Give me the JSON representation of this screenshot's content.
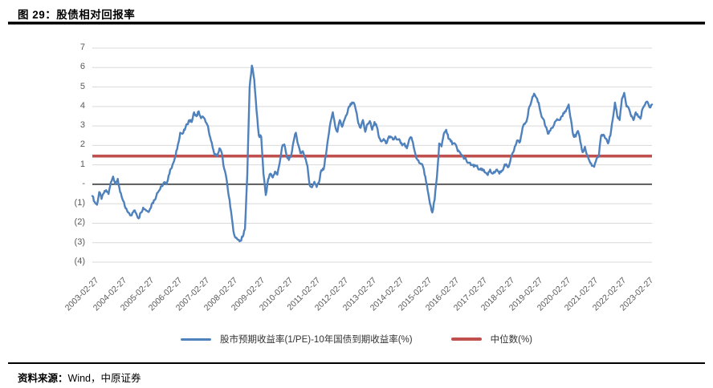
{
  "title": "图 29：股债相对回报率",
  "source_note": {
    "label": "资料来源：",
    "text": "Wind，中原证券"
  },
  "colors": {
    "series_line": "#4f81bd",
    "median_line": "#c0504d",
    "gridline": "#d9d9d9",
    "zero_axis": "#000000",
    "tick_text": "#595959"
  },
  "chart_data": {
    "type": "line",
    "title": "股债相对回报率",
    "xlabel": "",
    "ylabel": "",
    "ylim": [
      -4,
      7
    ],
    "grid": true,
    "legend_position": "bottom",
    "start_month": "2003-02",
    "frequency": "monthly",
    "y_ticks": [
      {
        "label": "7",
        "value": 7
      },
      {
        "label": "6",
        "value": 6
      },
      {
        "label": "5",
        "value": 5
      },
      {
        "label": "4",
        "value": 4
      },
      {
        "label": "3",
        "value": 3
      },
      {
        "label": "2",
        "value": 2
      },
      {
        "label": "1",
        "value": 1
      },
      {
        "label": "-",
        "value": 0
      },
      {
        "label": "(1)",
        "value": -1
      },
      {
        "label": "(2)",
        "value": -2
      },
      {
        "label": "(3)",
        "value": -3
      },
      {
        "label": "(4)",
        "value": -4
      }
    ],
    "x_ticks": [
      {
        "label": "2003-02-27",
        "month_index": 0
      },
      {
        "label": "2004-02-27",
        "month_index": 12
      },
      {
        "label": "2005-02-27",
        "month_index": 24
      },
      {
        "label": "2006-02-27",
        "month_index": 36
      },
      {
        "label": "2007-02-27",
        "month_index": 48
      },
      {
        "label": "2008-02-27",
        "month_index": 60
      },
      {
        "label": "2009-02-27",
        "month_index": 72
      },
      {
        "label": "2010-02-27",
        "month_index": 84
      },
      {
        "label": "2011-02-27",
        "month_index": 96
      },
      {
        "label": "2012-02-27",
        "month_index": 108
      },
      {
        "label": "2013-02-27",
        "month_index": 120
      },
      {
        "label": "2014-02-27",
        "month_index": 132
      },
      {
        "label": "2015-02-27",
        "month_index": 144
      },
      {
        "label": "2016-02-27",
        "month_index": 156
      },
      {
        "label": "2017-02-27",
        "month_index": 168
      },
      {
        "label": "2018-02-27",
        "month_index": 180
      },
      {
        "label": "2019-02-27",
        "month_index": 192
      },
      {
        "label": "2020-02-27",
        "month_index": 204
      },
      {
        "label": "2021-02-27",
        "month_index": 216
      },
      {
        "label": "2022-02-27",
        "month_index": 228
      },
      {
        "label": "2023-02-27",
        "month_index": 240
      }
    ],
    "series": [
      {
        "name": "股市预期收益率(1/PE)-10年国债到期收益率(%)",
        "type": "line",
        "color": "#4f81bd",
        "values": [
          -0.6,
          -0.9,
          -1.05,
          -0.4,
          -0.75,
          -0.45,
          -0.3,
          -0.5,
          0.1,
          0.4,
          0.0,
          0.28,
          -0.4,
          -0.75,
          -1.1,
          -1.35,
          -1.5,
          -1.6,
          -1.35,
          -1.5,
          -1.75,
          -1.45,
          -1.2,
          -1.3,
          -1.4,
          -1.25,
          -0.95,
          -0.8,
          -0.45,
          -0.3,
          -0.1,
          0.1,
          0.0,
          0.45,
          0.8,
          1.1,
          1.45,
          2.05,
          2.65,
          2.6,
          2.8,
          3.1,
          3.3,
          3.2,
          3.7,
          3.5,
          3.75,
          3.4,
          3.45,
          3.2,
          3.0,
          2.4,
          1.9,
          1.5,
          1.45,
          1.85,
          1.6,
          0.8,
          0.3,
          -0.6,
          -1.4,
          -2.4,
          -2.75,
          -2.85,
          -2.9,
          -2.7,
          -2.3,
          0.5,
          5.0,
          6.1,
          5.4,
          3.8,
          2.5,
          2.45,
          0.55,
          -0.55,
          0.25,
          0.55,
          0.35,
          0.65,
          0.5,
          1.1,
          1.9,
          2.05,
          1.5,
          1.25,
          1.5,
          2.2,
          2.65,
          2.05,
          1.6,
          1.7,
          1.35,
          0.95,
          -0.05,
          -0.15,
          0.13,
          -0.14,
          0.1,
          0.72,
          0.76,
          1.5,
          2.4,
          3.2,
          3.7,
          3.0,
          2.7,
          3.3,
          2.96,
          3.3,
          3.57,
          4.0,
          4.1,
          4.2,
          3.8,
          3.15,
          2.9,
          3.3,
          2.7,
          3.1,
          3.25,
          2.8,
          3.2,
          2.96,
          2.4,
          2.2,
          2.33,
          2.1,
          2.4,
          2.45,
          2.3,
          2.45,
          2.3,
          2.26,
          2.0,
          2.1,
          1.85,
          2.3,
          2.4,
          1.9,
          1.37,
          1.23,
          1.05,
          0.9,
          0.4,
          -0.3,
          -1.0,
          -1.45,
          -0.8,
          0.35,
          2.1,
          1.95,
          2.6,
          2.8,
          2.35,
          2.2,
          2.1,
          2.06,
          1.7,
          1.65,
          1.45,
          1.35,
          1.15,
          1.1,
          1.0,
          0.9,
          0.95,
          0.76,
          0.82,
          0.7,
          0.6,
          0.48,
          0.76,
          0.55,
          0.6,
          0.76,
          0.55,
          0.7,
          0.9,
          1.03,
          0.9,
          1.37,
          1.65,
          2.0,
          2.26,
          2.2,
          2.88,
          3.1,
          3.36,
          4.0,
          4.32,
          4.66,
          4.45,
          4.2,
          3.6,
          3.36,
          2.96,
          2.6,
          2.75,
          2.9,
          3.2,
          3.35,
          3.3,
          3.5,
          3.65,
          3.85,
          4.1,
          3.3,
          2.5,
          2.45,
          2.74,
          2.2,
          1.65,
          1.93,
          1.5,
          1.2,
          0.95,
          0.9,
          1.3,
          1.45,
          2.5,
          2.55,
          2.35,
          2.1,
          2.5,
          3.3,
          4.2,
          3.5,
          3.3,
          4.4,
          4.7,
          4.0,
          3.9,
          3.5,
          3.3,
          3.7,
          3.5,
          3.37,
          3.9,
          4.1,
          4.25,
          3.95,
          4.1
        ]
      },
      {
        "name": "中位数(%)",
        "type": "constant-line",
        "color": "#c0504d",
        "value": 1.45
      }
    ]
  }
}
